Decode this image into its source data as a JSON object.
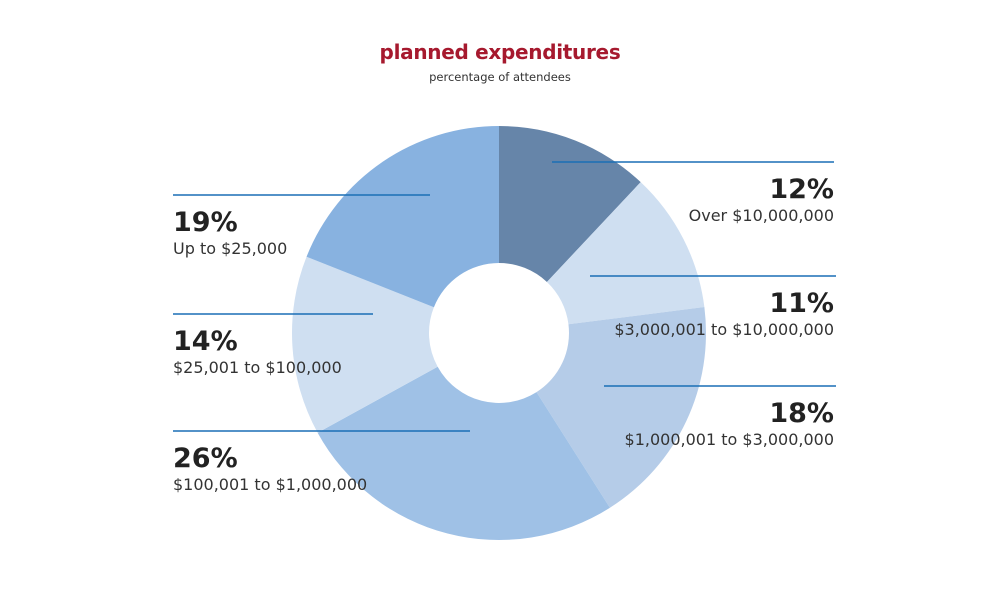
{
  "chart_data": {
    "type": "pie",
    "title": "planned expenditures",
    "subtitle": "percentage of attendees",
    "donut": true,
    "categories": [
      "Over $10,000,000",
      "$3,000,001 to $10,000,000",
      "$1,000,001 to $3,000,000",
      "$100,001 to $1,000,000",
      "$25,001 to $100,000",
      "Up to $25,000"
    ],
    "values": [
      12,
      11,
      18,
      26,
      14,
      19
    ],
    "value_labels": [
      "12%",
      "11%",
      "18%",
      "26%",
      "14%",
      "19%"
    ],
    "colors": [
      "#6685a9",
      "#cfdff1",
      "#b5cce8",
      "#9fc1e6",
      "#cfdff1",
      "#88b2e0"
    ],
    "leader_color": "#1a6fb5",
    "legend_placement": "callouts left and right of the donut"
  }
}
